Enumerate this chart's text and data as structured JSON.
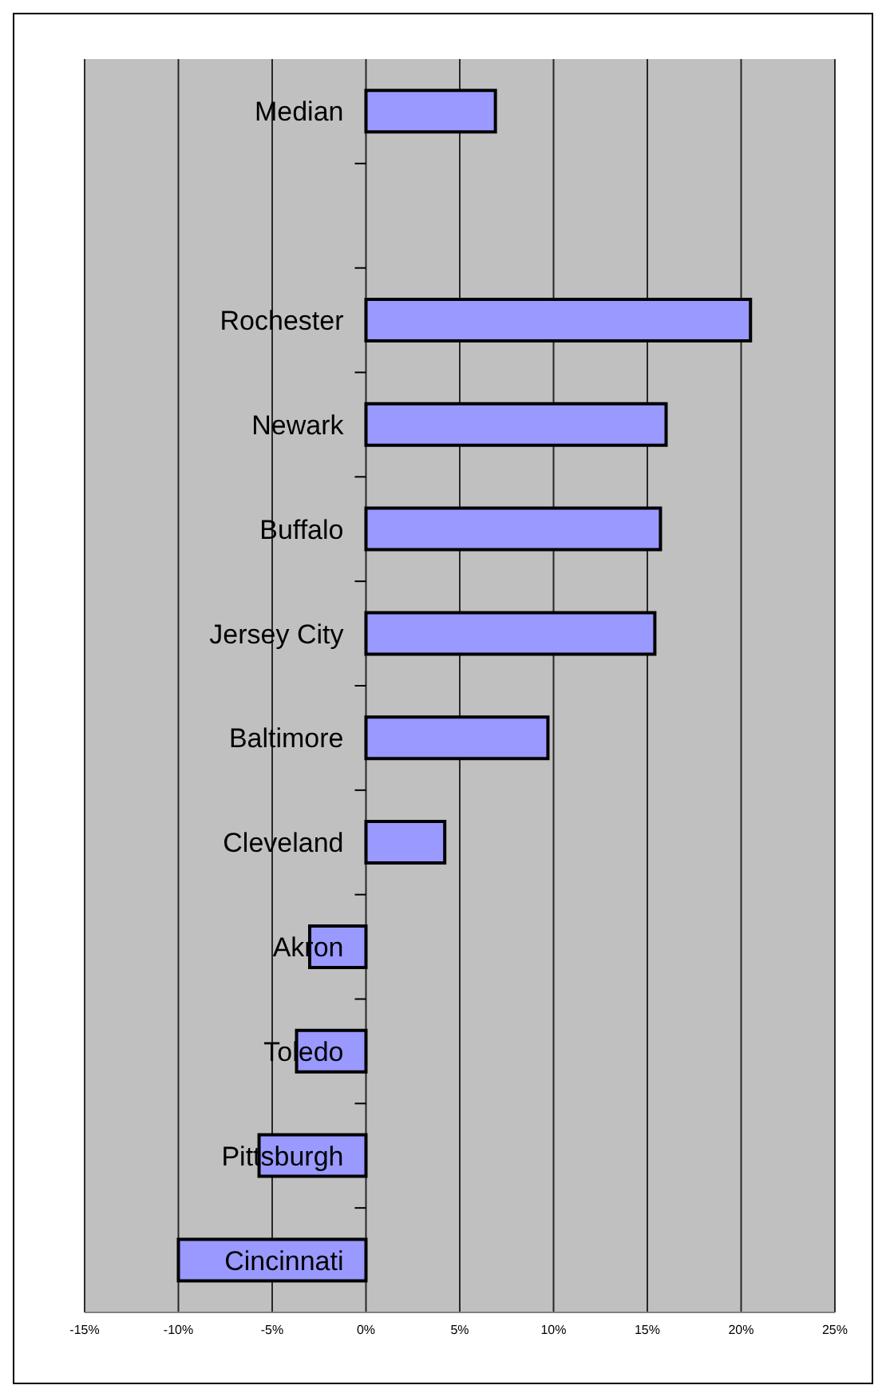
{
  "chart_data": {
    "type": "bar",
    "orientation": "horizontal",
    "categories": [
      "Median",
      null,
      "Rochester",
      "Newark",
      "Buffalo",
      "Jersey City",
      "Baltimore",
      "Cleveland",
      "Akron",
      "Toledo",
      "Pittsburgh",
      "Cincinnati"
    ],
    "values": [
      6.9,
      null,
      20.5,
      16.0,
      15.7,
      15.4,
      9.7,
      4.2,
      -3.0,
      -3.7,
      -5.7,
      -10.0
    ],
    "color": "#9999ff",
    "xlim": [
      -15,
      25
    ],
    "xticks": [
      {
        "value": -15,
        "label": "-15%"
      },
      {
        "value": -10,
        "label": "-10%"
      },
      {
        "value": -5,
        "label": "-5%"
      },
      {
        "value": 0,
        "label": "0%"
      },
      {
        "value": 5,
        "label": "5%"
      },
      {
        "value": 10,
        "label": "10%"
      },
      {
        "value": 15,
        "label": "15%"
      },
      {
        "value": 20,
        "label": "20%"
      },
      {
        "value": 25,
        "label": "25%"
      }
    ],
    "grid": "x"
  }
}
